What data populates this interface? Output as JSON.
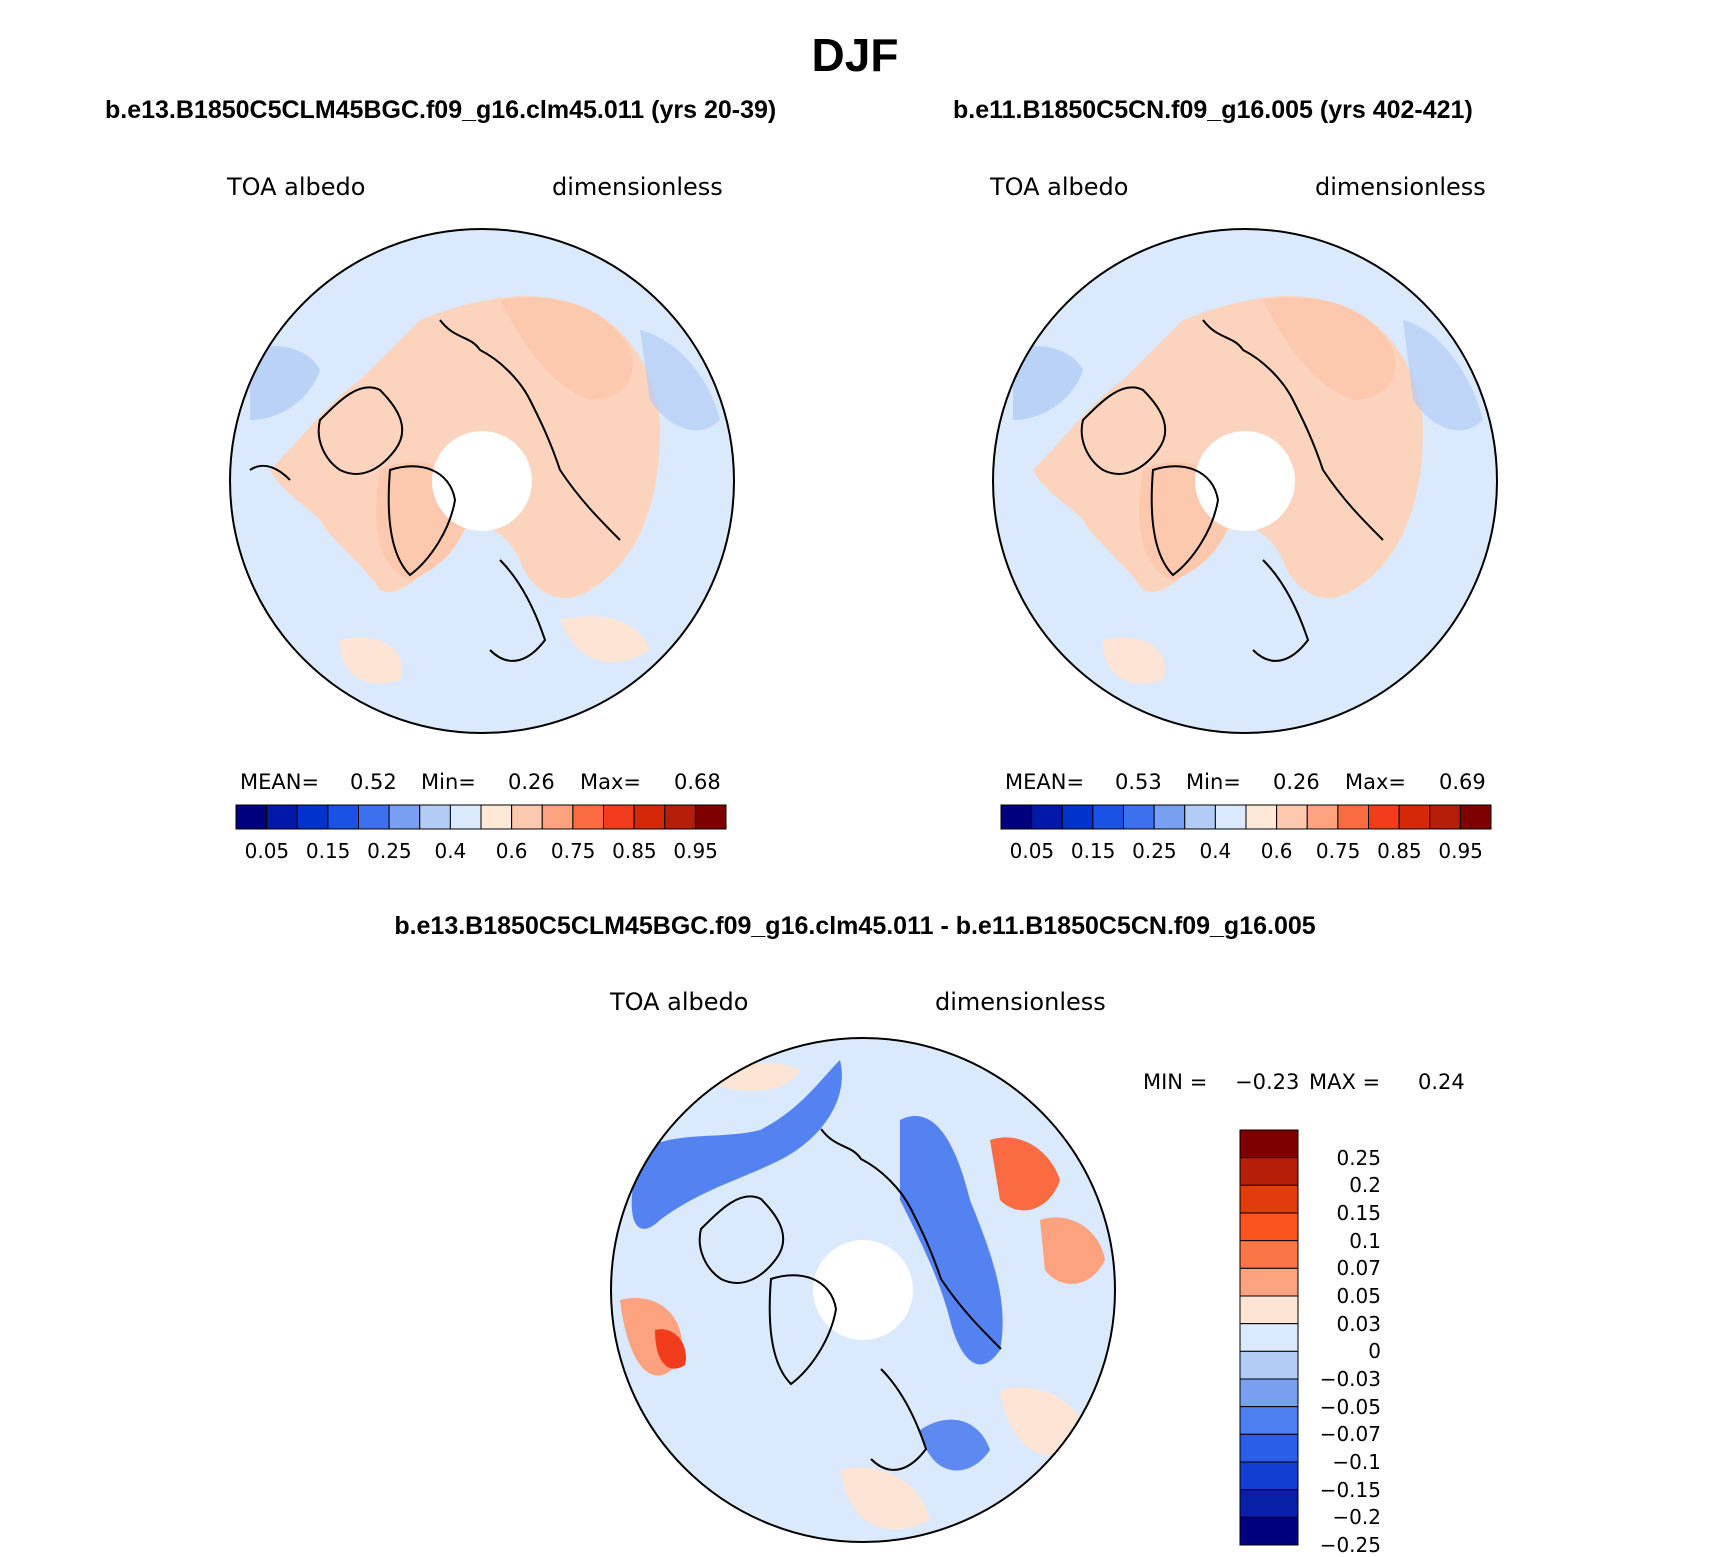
{
  "figure_title": "DJF",
  "panels": [
    {
      "case_title": "b.e13.B1850C5CLM45BGC.f09_g16.clm45.011 (yrs 20-39)",
      "variable": "TOA albedo",
      "units": "dimensionless",
      "stats": {
        "mean_label": "MEAN=",
        "mean": "0.52",
        "min_label": "Min=",
        "min": "0.26",
        "max_label": "Max=",
        "max": "0.68"
      }
    },
    {
      "case_title": "b.e11.B1850C5CN.f09_g16.005 (yrs 402-421)",
      "variable": "TOA albedo",
      "units": "dimensionless",
      "stats": {
        "mean_label": "MEAN=",
        "mean": "0.53",
        "min_label": "Min=",
        "min": "0.26",
        "max_label": "Max=",
        "max": "0.69"
      }
    }
  ],
  "diff_panel": {
    "case_title": "b.e13.B1850C5CLM45BGC.f09_g16.clm45.011 - b.e11.B1850C5CN.f09_g16.005",
    "variable": "TOA albedo",
    "units": "dimensionless",
    "stats": {
      "min_label": "MIN =",
      "min": "−0.23",
      "max_label": "MAX =",
      "max": "0.24"
    }
  },
  "colorbar_abs": {
    "colors": [
      "#00007f",
      "#0019a8",
      "#0033cc",
      "#1a52e6",
      "#3d70ee",
      "#79a0f0",
      "#b3ccf5",
      "#dbe9fc",
      "#fde9d6",
      "#fcc8ae",
      "#fca27f",
      "#fb6b41",
      "#f03c1a",
      "#d42809",
      "#b51e08",
      "#7f0000"
    ],
    "labels": [
      "0.05",
      "0.15",
      "0.25",
      "0.4",
      "0.6",
      "0.75",
      "0.85",
      "0.95"
    ]
  },
  "colorbar_diff": {
    "colors": [
      "#7f0000",
      "#b51e08",
      "#e23b0e",
      "#fb541f",
      "#fb7647",
      "#fca27f",
      "#fde4d4",
      "#dbe9fc",
      "#b3ccf5",
      "#79a0f0",
      "#4d7ff0",
      "#2a5ee8",
      "#123fd1",
      "#0820a8",
      "#00007f"
    ],
    "labels": [
      "0.25",
      "0.2",
      "0.15",
      "0.1",
      "0.07",
      "0.05",
      "0.03",
      "0",
      "−0.03",
      "−0.05",
      "−0.07",
      "−0.1",
      "−0.15",
      "−0.2",
      "−0.25"
    ]
  },
  "chart_data": [
    {
      "type": "heatmap",
      "title": "b.e13.B1850C5CLM45BGC.f09_g16.clm45.011 (yrs 20-39)",
      "projection": "north polar stereographic",
      "variable": "TOA albedo",
      "units": "dimensionless",
      "mean": 0.52,
      "min": 0.26,
      "max": 0.68,
      "levels": [
        0.05,
        0.1,
        0.15,
        0.2,
        0.25,
        0.3,
        0.4,
        0.5,
        0.6,
        0.65,
        0.7,
        0.75,
        0.8,
        0.85,
        0.9,
        0.95
      ]
    },
    {
      "type": "heatmap",
      "title": "b.e11.B1850C5CN.f09_g16.005 (yrs 402-421)",
      "projection": "north polar stereographic",
      "variable": "TOA albedo",
      "units": "dimensionless",
      "mean": 0.53,
      "min": 0.26,
      "max": 0.69,
      "levels": [
        0.05,
        0.1,
        0.15,
        0.2,
        0.25,
        0.3,
        0.4,
        0.5,
        0.6,
        0.65,
        0.7,
        0.75,
        0.8,
        0.85,
        0.9,
        0.95
      ]
    },
    {
      "type": "heatmap",
      "title": "b.e13.B1850C5CLM45BGC.f09_g16.clm45.011 - b.e11.B1850C5CN.f09_g16.005",
      "projection": "north polar stereographic",
      "variable": "TOA albedo",
      "units": "dimensionless",
      "min": -0.23,
      "max": 0.24,
      "levels": [
        -0.25,
        -0.2,
        -0.15,
        -0.1,
        -0.07,
        -0.05,
        -0.03,
        0,
        0.03,
        0.05,
        0.07,
        0.1,
        0.15,
        0.2,
        0.25
      ]
    }
  ]
}
